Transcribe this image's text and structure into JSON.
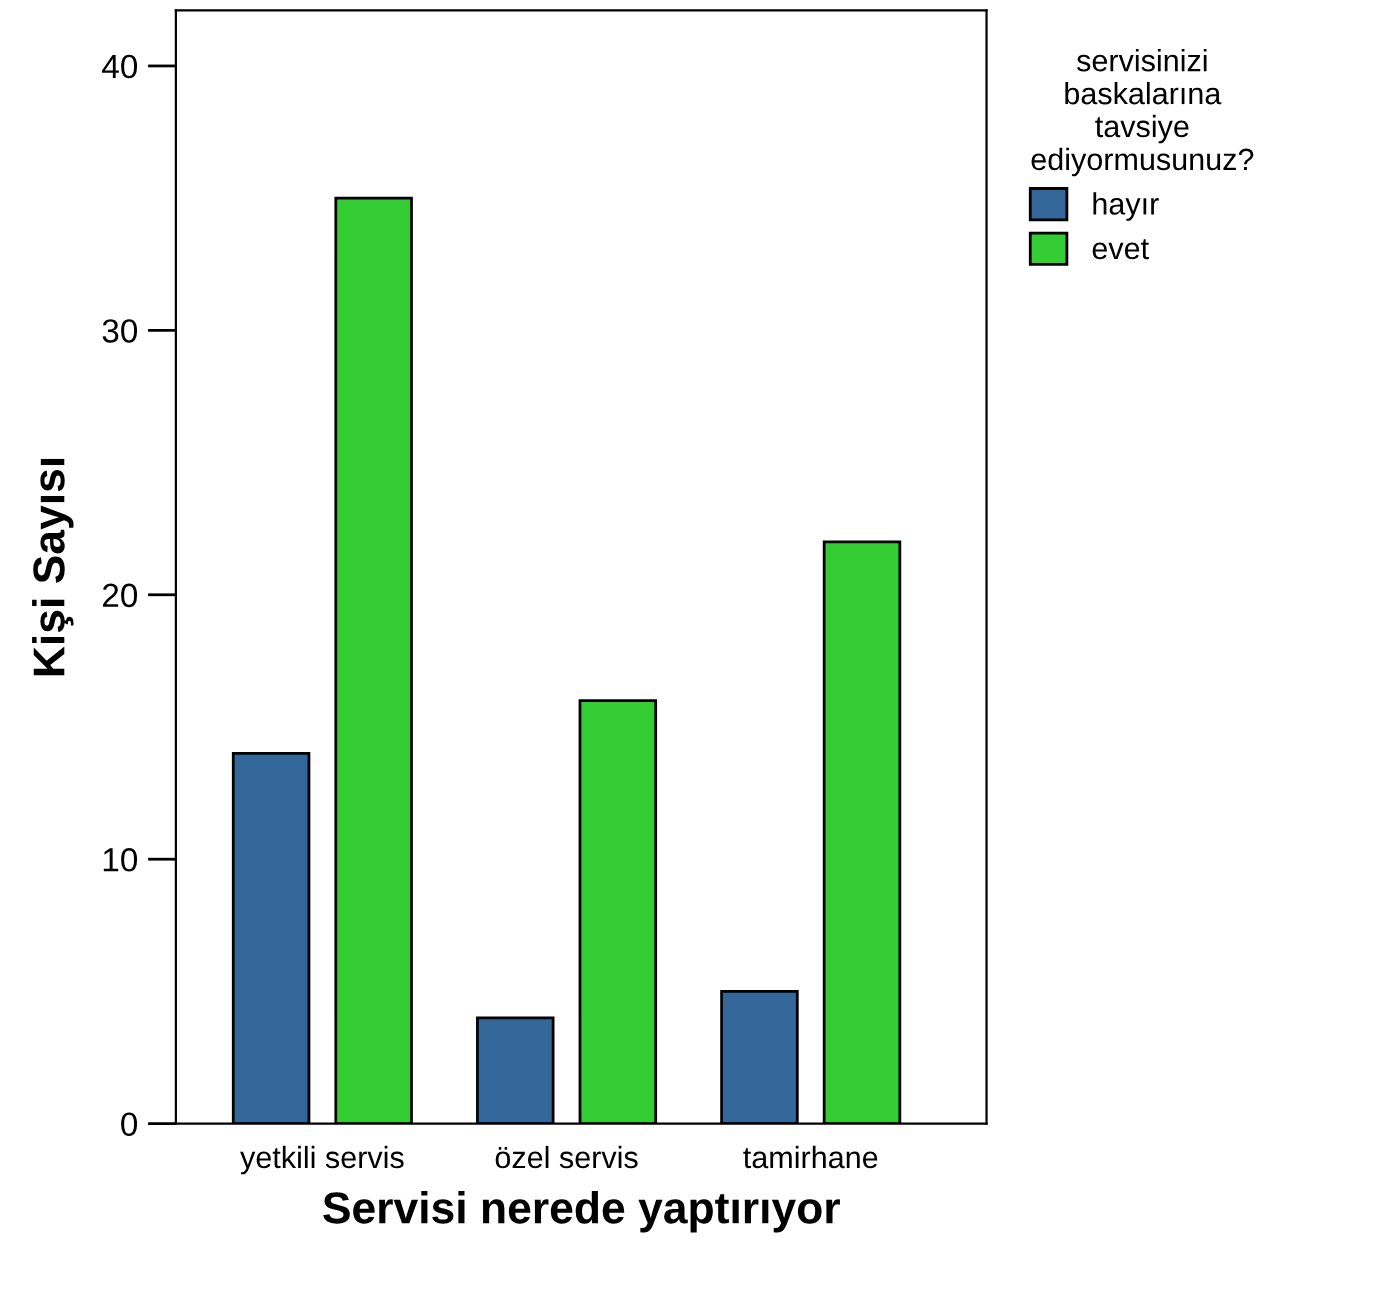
{
  "chart_data": {
    "type": "bar",
    "xlabel": "Servisi nerede yaptırıyor",
    "ylabel": "Kişi Sayısı",
    "legend_title": "servisinizi\nbaskalarına\ntavsiye\nediyormusunuz?",
    "categories": [
      "yetkili servis",
      "özel servis",
      "tamirhane"
    ],
    "series": [
      {
        "name": "hayır",
        "color": "#336699",
        "values": [
          14,
          4,
          5
        ]
      },
      {
        "name": "evet",
        "color": "#33cc33",
        "values": [
          35,
          16,
          22
        ]
      }
    ],
    "ylim": [
      0,
      42.1
    ],
    "yticks": [
      0,
      10,
      20,
      30,
      40
    ],
    "grid": false,
    "legend": "right"
  }
}
